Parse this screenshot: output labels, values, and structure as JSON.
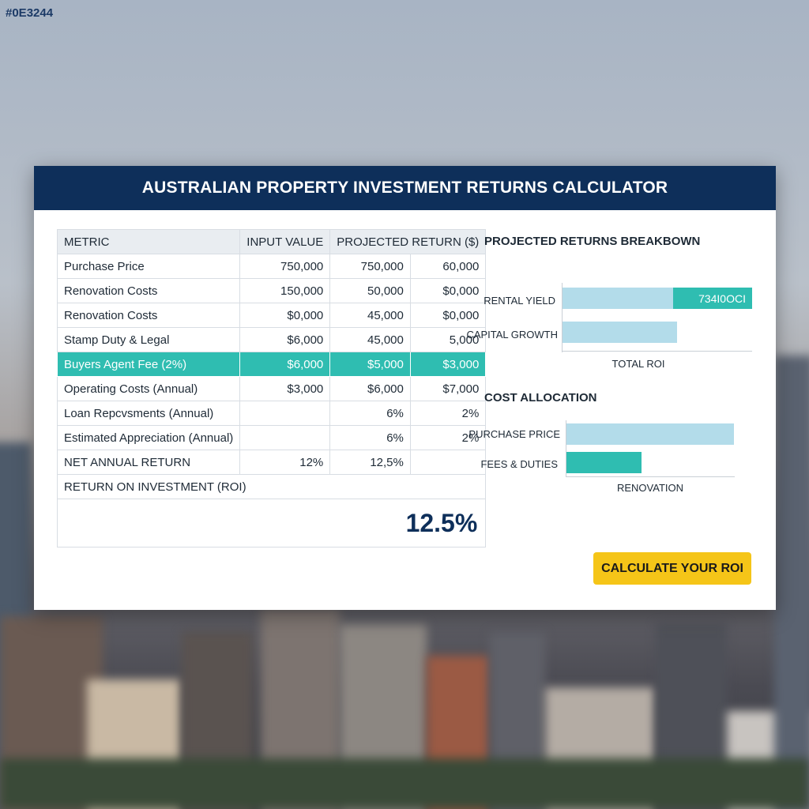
{
  "corner_tag": "#0E3244",
  "header": {
    "title": "AUSTRALIAN PROPERTY INVESTMENT RETURNS CALCULATOR"
  },
  "table": {
    "headers": [
      "METRIC",
      "INPUT VALUE",
      "PROJECTED RETURN ($)",
      ""
    ],
    "rows": [
      [
        "Purchase Price",
        "750,000",
        "750,000",
        "60,000"
      ],
      [
        "Renovation Costs",
        "150,000",
        "50,000",
        "$0,000"
      ],
      [
        "Renovation Costs",
        "$0,000",
        "45,000",
        "$0,000"
      ],
      [
        "Stamp Duty & Legal",
        "$6,000",
        "45,000",
        "5,000"
      ],
      [
        "Buyers Agent Fee (2%)",
        "$6,000",
        "$5,000",
        "$3,000"
      ],
      [
        "Operating Costs (Annual)",
        "$3,000",
        "$6,000",
        "$7,000"
      ],
      [
        "Loan Repcvsments (Annual)",
        "",
        "6%",
        "2%"
      ],
      [
        "Estimated Appreciation (Annual)",
        "",
        "6%",
        "2%"
      ],
      [
        "NET ANNUAL RETURN",
        "12%",
        "12,5%",
        ""
      ]
    ],
    "roi_label": "RETURN ON INVESTMENT (ROI)",
    "roi_value": "12.5%"
  },
  "returns_breakdown": {
    "title": "PROJECTED RETURNS BREAKBOWN",
    "rental_yield_label": "RENTAL YIELD",
    "rental_yield_badge": "734I0OCI",
    "capital_growth_label": "CAPITAL GROWTH",
    "axis_label": "TOTAL ROI"
  },
  "cost_allocation": {
    "title": "COST ALLOCATION",
    "purchase_price_label": "PURCHASE PRICE",
    "fees_label": "FEES & DUTIES",
    "axis_label": "RENOVATION"
  },
  "cta": {
    "label": "CALCULATE YOUR ROI"
  },
  "colors": {
    "header_navy": "#0e2f5a",
    "highlight_teal": "#2fbdb1",
    "bar_light_blue": "#b3dcea",
    "cta_yellow": "#f5c518"
  }
}
